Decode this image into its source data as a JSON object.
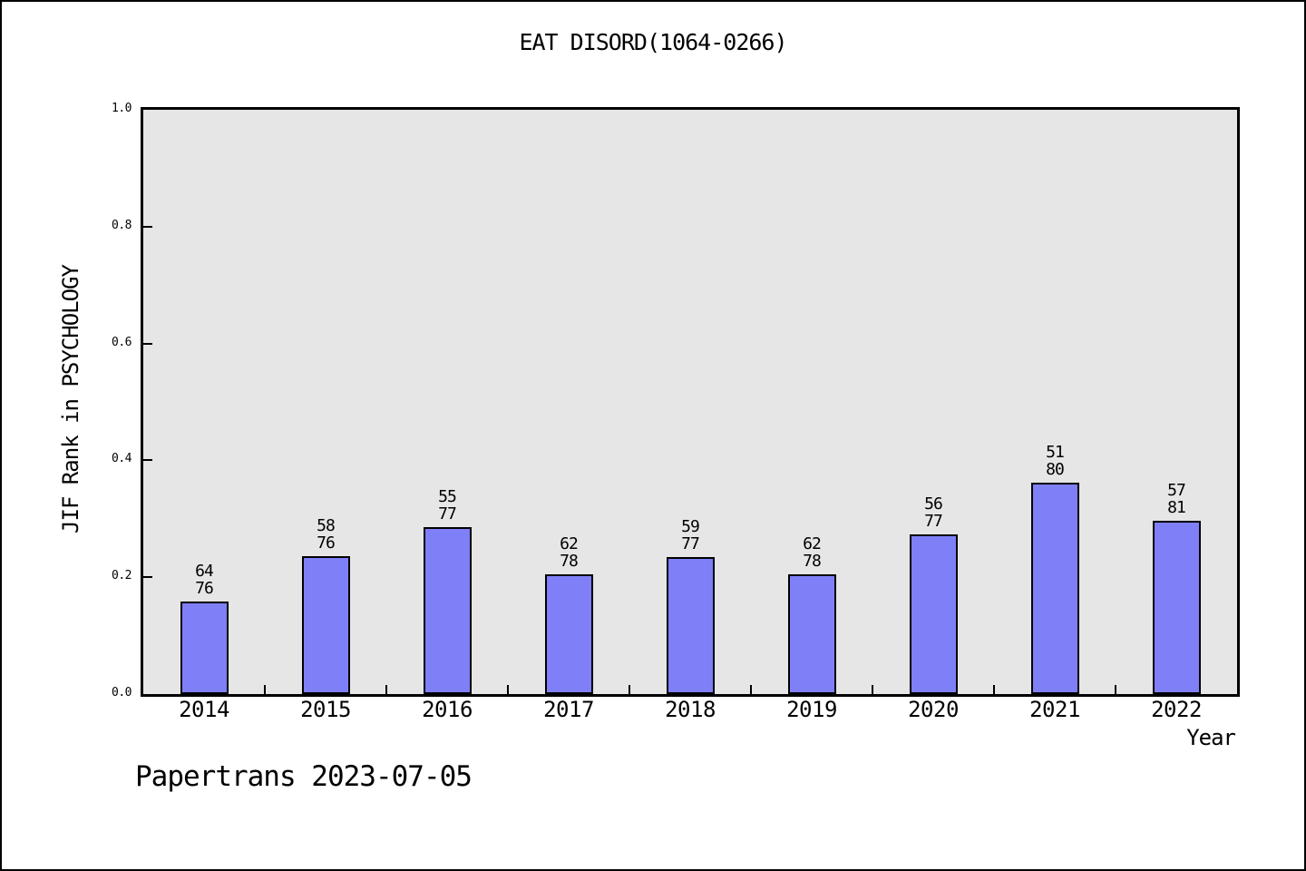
{
  "chart_data": {
    "type": "bar",
    "title": "EAT DISORD(1064-0266)",
    "xlabel": "Year",
    "ylabel": "JIF Rank in PSYCHOLOGY",
    "categories": [
      "2014",
      "2015",
      "2016",
      "2017",
      "2018",
      "2019",
      "2020",
      "2021",
      "2022"
    ],
    "ranks": [
      {
        "numerator": "64",
        "denominator": "76"
      },
      {
        "numerator": "58",
        "denominator": "76"
      },
      {
        "numerator": "55",
        "denominator": "77"
      },
      {
        "numerator": "62",
        "denominator": "78"
      },
      {
        "numerator": "59",
        "denominator": "77"
      },
      {
        "numerator": "62",
        "denominator": "78"
      },
      {
        "numerator": "56",
        "denominator": "77"
      },
      {
        "numerator": "51",
        "denominator": "80"
      },
      {
        "numerator": "57",
        "denominator": "81"
      }
    ],
    "values": [
      0.1579,
      0.2368,
      0.2857,
      0.2051,
      0.2338,
      0.2051,
      0.2727,
      0.3625,
      0.2963
    ],
    "ylim": [
      0,
      1
    ],
    "yticks": [
      {
        "value": 0.0,
        "label": "0.0"
      },
      {
        "value": 0.2,
        "label": "0.2"
      },
      {
        "value": 0.4,
        "label": "0.4"
      },
      {
        "value": 0.6,
        "label": "0.6"
      },
      {
        "value": 0.8,
        "label": "0.8"
      },
      {
        "value": 1.0,
        "label": "1.0"
      }
    ],
    "grid": "off",
    "legend": "none",
    "bar_color": "#7f80f8",
    "plot_background": "#e6e6e6",
    "axis_color": "#000000"
  },
  "footer": {
    "note": "Papertrans 2023-07-05"
  }
}
